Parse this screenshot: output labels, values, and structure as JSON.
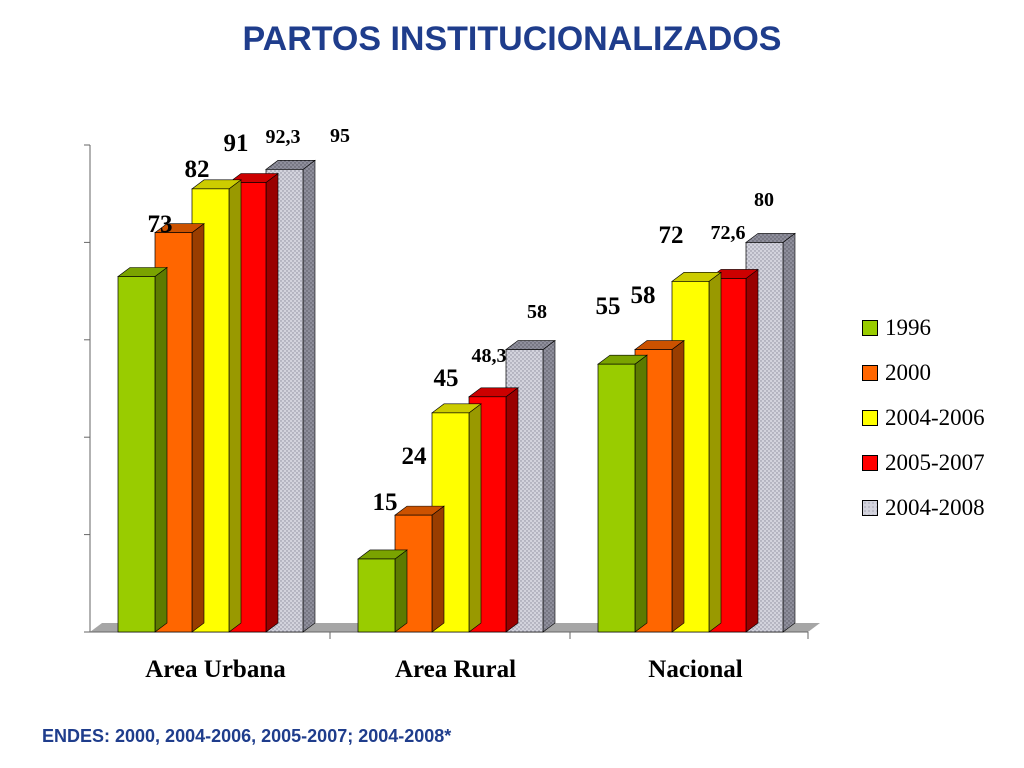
{
  "title": "PARTOS INSTITUCIONALIZADOS",
  "source_note": "ENDES: 2000, 2004-2006, 2005-2007; 2004-2008*",
  "chart_data": {
    "type": "bar",
    "categories": [
      "Area Urbana",
      "Area Rural",
      "Nacional"
    ],
    "ylim": [
      0,
      100
    ],
    "grid": false,
    "legend_position": "right",
    "series": [
      {
        "name": "1996",
        "color": "#99cc00",
        "values": [
          73,
          15,
          55
        ],
        "labels": [
          "73",
          "15",
          "55"
        ]
      },
      {
        "name": "2000",
        "color": "#ff6600",
        "values": [
          82,
          24,
          58
        ],
        "labels": [
          "82",
          "24",
          "58"
        ]
      },
      {
        "name": "2004-2006",
        "color": "#ffff00",
        "values": [
          91,
          45,
          72
        ],
        "labels": [
          "91",
          "45",
          "72"
        ]
      },
      {
        "name": "2005-2007",
        "color": "#ff0000",
        "values": [
          92.3,
          48.3,
          72.6
        ],
        "labels": [
          "92,3",
          "48,3",
          "72,6"
        ]
      },
      {
        "name": "2004-2008",
        "color": "#c8c8d8",
        "values": [
          95,
          58,
          80
        ],
        "labels": [
          "95",
          "58",
          "80"
        ]
      }
    ]
  }
}
